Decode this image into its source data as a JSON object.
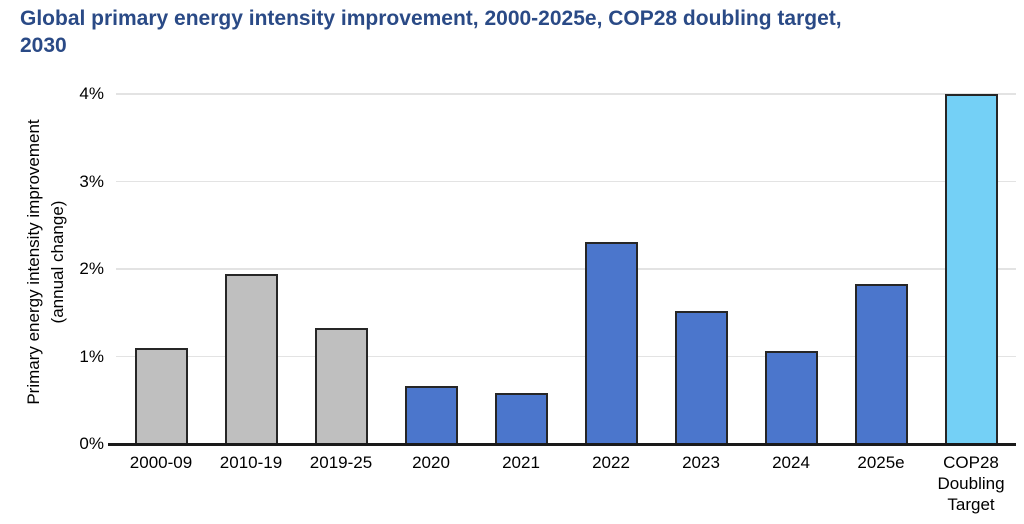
{
  "header": {
    "title_lines": [
      "Global primary energy intensity improvement, 2000-2025e, COP28 doubling target,",
      "2030"
    ]
  },
  "chart_data": {
    "type": "bar",
    "title": "Global primary energy intensity improvement, 2000-2025e, COP28 doubling target, 2030",
    "ylabel": "Primary energy intensity improvement\n(annual change)",
    "xlabel": "",
    "categories": [
      "2000-09",
      "2010-19",
      "2019-25",
      "2020",
      "2021",
      "2022",
      "2023",
      "2024",
      "2025e",
      "COP28\nDoubling\nTarget"
    ],
    "values": [
      1.1,
      1.94,
      1.33,
      0.66,
      0.58,
      2.31,
      1.52,
      1.06,
      1.83,
      4.0
    ],
    "unit": "%",
    "y_ticks": [
      "0%",
      "1%",
      "2%",
      "3%",
      "4%"
    ],
    "ylim": [
      0,
      4
    ],
    "grid": true,
    "legend": false,
    "bar_colors": [
      "#bfbfbf",
      "#bfbfbf",
      "#bfbfbf",
      "#4b76cc",
      "#4b76cc",
      "#4b76cc",
      "#4b76cc",
      "#4b76cc",
      "#4b76cc",
      "#74d0f6"
    ]
  },
  "colors": {
    "title_text": "#2a4a86",
    "bar_gray": "#bfbfbf",
    "bar_blue": "#4b76cc",
    "bar_light_blue": "#74d0f6",
    "bar_border": "#262626",
    "gridline": "#e3e3e3",
    "axis_line": "#1a1a1a",
    "background": "#ffffff"
  }
}
